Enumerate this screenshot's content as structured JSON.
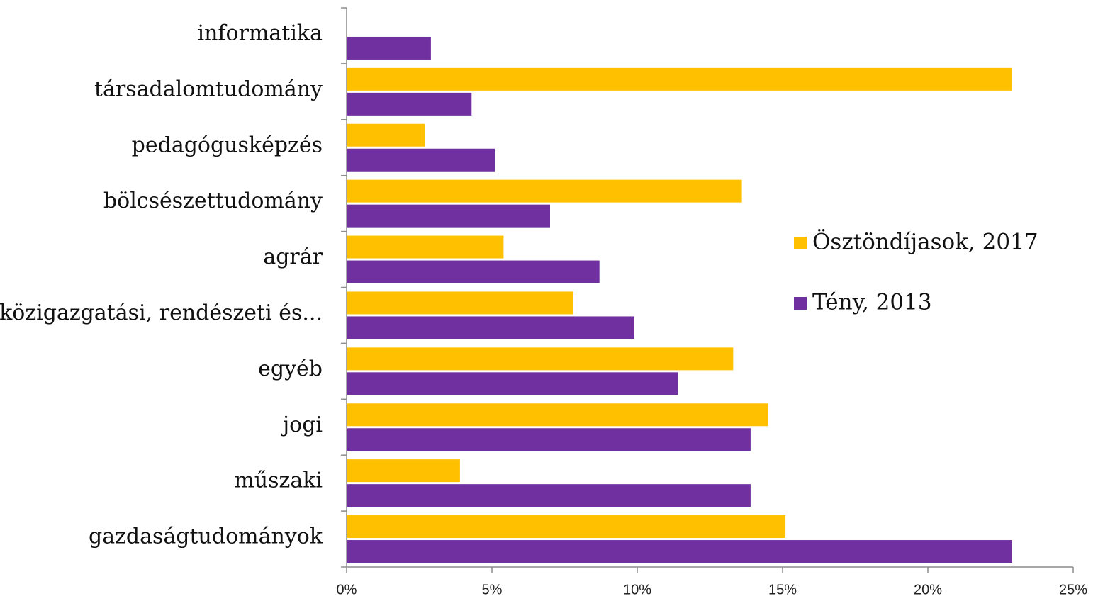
{
  "chart_data": {
    "type": "hbar",
    "categories": [
      "informatika",
      "társadalomtudomány",
      "pedagógusképzés",
      "bölcsészettudomány",
      "agrár",
      "közigazgatási, rendészeti és...",
      "egyéb",
      "jogi",
      "műszaki",
      "gazdaságtudományok"
    ],
    "series": [
      {
        "name": "Ösztöndíjasok, 2017",
        "color": "#FFC000",
        "values": [
          0,
          22.9,
          2.7,
          13.6,
          5.4,
          7.8,
          13.3,
          14.5,
          3.9,
          15.1
        ]
      },
      {
        "name": "Tény, 2013",
        "color": "#7030A0",
        "values": [
          2.9,
          4.3,
          5.1,
          7.0,
          8.7,
          9.9,
          11.4,
          13.9,
          13.9,
          22.9
        ]
      }
    ],
    "xlim": [
      0,
      25
    ],
    "xticks": [
      {
        "value": 0,
        "label": "0%"
      },
      {
        "value": 5,
        "label": "5%"
      },
      {
        "value": 10,
        "label": "10%"
      },
      {
        "value": 15,
        "label": "15%"
      },
      {
        "value": 20,
        "label": "20%"
      },
      {
        "value": 25,
        "label": "25%"
      }
    ],
    "legend": "right"
  }
}
